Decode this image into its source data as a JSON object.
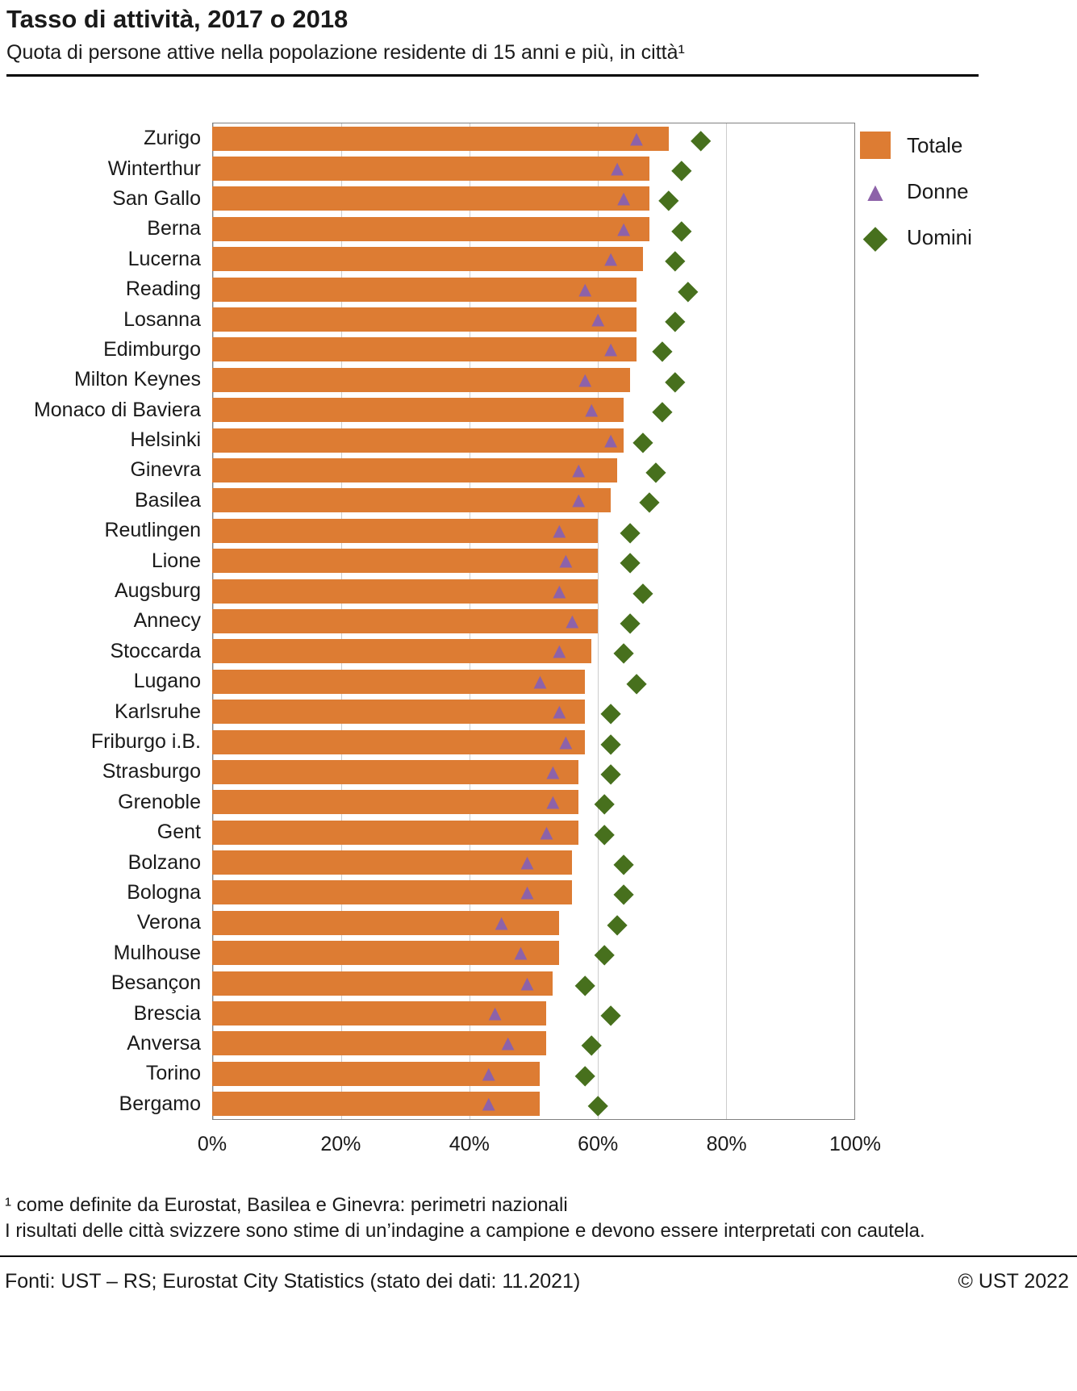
{
  "header": {
    "title": "Tasso di attività, 2017 o 2018",
    "subtitle": "Quota di persone attive nella popolazione residente di 15 anni e più, in città¹"
  },
  "legend": {
    "total": "Totale",
    "women": "Donne",
    "men": "Uomini"
  },
  "colors": {
    "total": "#dd7c33",
    "women": "#8d62a9",
    "men": "#47701d",
    "grid": "#cccccc",
    "plot_border": "#808080"
  },
  "chart_data": {
    "type": "bar",
    "orientation": "horizontal",
    "title": "Tasso di attività, 2017 o 2018",
    "subtitle": "Quota di persone attive nella popolazione residente di 15 anni e più, in città¹",
    "xlabel": "",
    "ylabel": "",
    "xlim": [
      0,
      100
    ],
    "x_ticks": [
      "0%",
      "20%",
      "40%",
      "60%",
      "80%",
      "100%"
    ],
    "grid": true,
    "legend_position": "top-right",
    "categories": [
      "Zurigo",
      "Winterthur",
      "San Gallo",
      "Berna",
      "Lucerna",
      "Reading",
      "Losanna",
      "Edimburgo",
      "Milton Keynes",
      "Monaco di Baviera",
      "Helsinki",
      "Ginevra",
      "Basilea",
      "Reutlingen",
      "Lione",
      "Augsburg",
      "Annecy",
      "Stoccarda",
      "Lugano",
      "Karlsruhe",
      "Friburgo i.B.",
      "Strasburgo",
      "Grenoble",
      "Gent",
      "Bolzano",
      "Bologna",
      "Verona",
      "Mulhouse",
      "Besançon",
      "Brescia",
      "Anversa",
      "Torino",
      "Bergamo"
    ],
    "series": [
      {
        "name": "Totale",
        "marker": "bar",
        "color": "#dd7c33",
        "values": [
          71,
          68,
          68,
          68,
          67,
          66,
          66,
          66,
          65,
          64,
          64,
          63,
          62,
          60,
          60,
          60,
          60,
          59,
          58,
          58,
          58,
          57,
          57,
          57,
          56,
          56,
          54,
          54,
          53,
          52,
          52,
          51,
          51
        ]
      },
      {
        "name": "Donne",
        "marker": "triangle",
        "color": "#8d62a9",
        "values": [
          66,
          63,
          64,
          64,
          62,
          58,
          60,
          62,
          58,
          59,
          62,
          57,
          57,
          54,
          55,
          54,
          56,
          54,
          51,
          54,
          55,
          53,
          53,
          52,
          49,
          49,
          45,
          48,
          49,
          44,
          46,
          43,
          43
        ]
      },
      {
        "name": "Uomini",
        "marker": "diamond",
        "color": "#47701d",
        "values": [
          76,
          73,
          71,
          73,
          72,
          74,
          72,
          70,
          72,
          70,
          67,
          69,
          68,
          65,
          65,
          67,
          65,
          64,
          66,
          62,
          62,
          62,
          61,
          61,
          64,
          64,
          63,
          61,
          58,
          62,
          59,
          58,
          60
        ]
      }
    ]
  },
  "footnotes": [
    "¹  come definite da Eurostat, Basilea e Ginevra: perimetri nazionali",
    "I risultati delle città svizzere sono stime di un’indagine a campione e devono essere interpretati con cautela."
  ],
  "footer": {
    "source": "Fonti: UST – RS; Eurostat City Statistics (stato dei dati: 11.2021)",
    "copyright": "© UST 2022"
  }
}
